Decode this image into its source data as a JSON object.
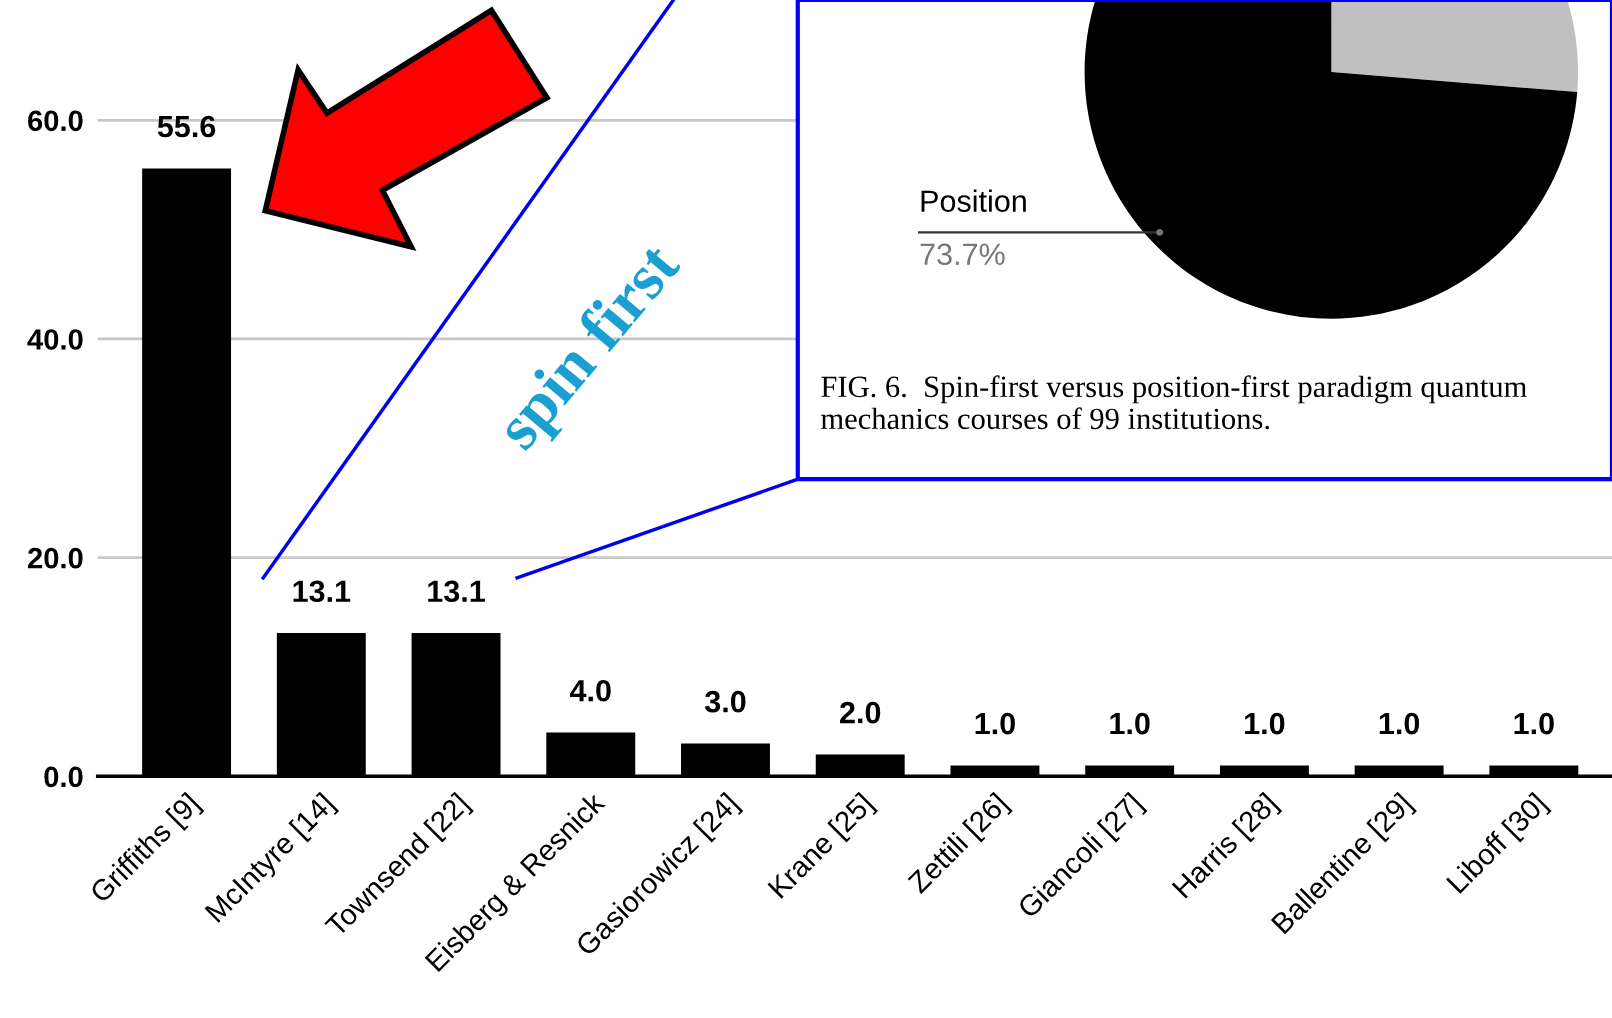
{
  "chart_data": [
    {
      "type": "bar",
      "categories": [
        "Griffiths [9]",
        "McIntyre [14]",
        "Townsend [22]",
        "Eisberg & Resnick",
        "Gasiorowicz [24]",
        "Krane [25]",
        "Zettili [26]",
        "Giancoli [27]",
        "Harris [28]",
        "Ballentine [29]",
        "Liboff [30]"
      ],
      "values": [
        55.6,
        13.1,
        13.1,
        4.0,
        3.0,
        2.0,
        1.0,
        1.0,
        1.0,
        1.0,
        1.0
      ],
      "color": "#000000",
      "value_labels": [
        "55.6",
        "13.1",
        "13.1",
        "4.0",
        "3.0",
        "2.0",
        "1.0",
        "1.0",
        "1.0",
        "1.0",
        "1.0"
      ],
      "ylim": [
        0,
        71
      ],
      "yticks": [
        {
          "value": 0,
          "label": "0.0"
        },
        {
          "value": 20,
          "label": "20.0"
        },
        {
          "value": 40,
          "label": "40.0"
        },
        {
          "value": 60,
          "label": "60.0"
        }
      ],
      "grid": "y",
      "annotations": [
        "spin first"
      ]
    },
    {
      "type": "pie",
      "categories": [
        null,
        "Position"
      ],
      "values": [
        26.3,
        73.7
      ],
      "colors": [
        "#c0c0c0",
        "#000000"
      ],
      "value_labels": [
        null,
        "73.7%"
      ],
      "annotations": [
        "FIG. 6.  Spin-first versus position-first paradigm quantum mechanics courses of 99 institutions."
      ]
    }
  ]
}
